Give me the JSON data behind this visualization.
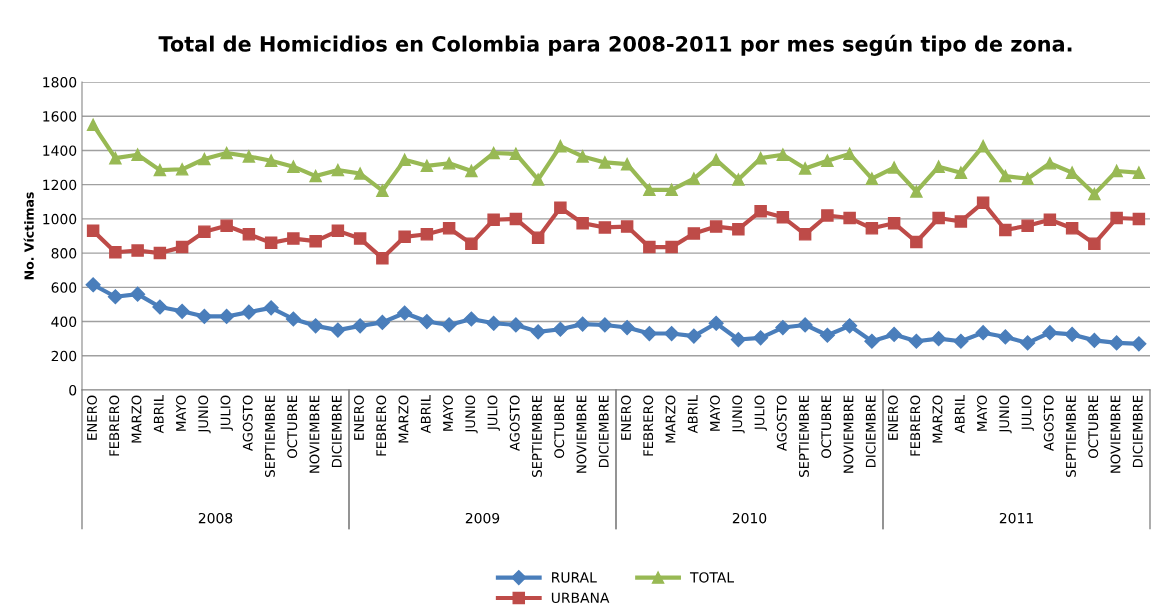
{
  "chart_data": {
    "type": "line",
    "title": "Total de Homicidios en Colombia para 2008-2011 por mes según tipo de zona.",
    "ylabel": "No. Víctimas",
    "categories": [
      "ENERO",
      "FEBRERO",
      "MARZO",
      "ABRIL",
      "MAYO",
      "JUNIO",
      "JULIO",
      "AGOSTO",
      "SEPTIEMBRE",
      "OCTUBRE",
      "NOVIEMBRE",
      "DICIEMBRE",
      "ENERO",
      "FEBRERO",
      "MARZO",
      "ABRIL",
      "MAYO",
      "JUNIO",
      "JULIO",
      "AGOSTO",
      "SEPTIEMBRE",
      "OCTUBRE",
      "NOVIEMBRE",
      "DICIEMBRE",
      "ENERO",
      "FEBRERO",
      "MARZO",
      "ABRIL",
      "MAYO",
      "JUNIO",
      "JULIO",
      "AGOSTO",
      "SEPTIEMBRE",
      "OCTUBRE",
      "NOVIEMBRE",
      "DICIEMBRE",
      "ENERO",
      "FEBRERO",
      "MARZO",
      "ABRIL",
      "MAYO",
      "JUNIO",
      "JULIO",
      "AGOSTO",
      "SEPTIEMBRE",
      "OCTUBRE",
      "NOVIEMBRE",
      "DICIEMBRE"
    ],
    "annotations": [
      "2008",
      "2009",
      "2010",
      "2011"
    ],
    "series": [
      {
        "name": "RURAL",
        "color": "#4a7ebb",
        "marker": "diamond",
        "values": [
          615,
          545,
          560,
          485,
          460,
          430,
          430,
          455,
          480,
          415,
          375,
          350,
          375,
          395,
          450,
          400,
          380,
          415,
          390,
          380,
          340,
          355,
          385,
          380,
          365,
          330,
          330,
          315,
          390,
          295,
          305,
          365,
          380,
          320,
          375,
          285,
          325,
          285,
          300,
          285,
          335,
          310,
          275,
          335,
          325,
          290,
          275,
          270
        ]
      },
      {
        "name": "URBANA",
        "color": "#be4b48",
        "marker": "square",
        "values": [
          930,
          805,
          815,
          800,
          835,
          925,
          960,
          910,
          860,
          885,
          870,
          930,
          885,
          770,
          895,
          910,
          945,
          855,
          995,
          1000,
          890,
          1065,
          975,
          950,
          955,
          835,
          835,
          915,
          955,
          940,
          1045,
          1010,
          910,
          1020,
          1005,
          945,
          975,
          865,
          1005,
          985,
          1095,
          935,
          960,
          995,
          945,
          855,
          1005,
          1000
        ]
      },
      {
        "name": "TOTAL",
        "color": "#98b954",
        "marker": "triangle",
        "values": [
          1550,
          1355,
          1375,
          1285,
          1290,
          1350,
          1385,
          1365,
          1340,
          1305,
          1250,
          1285,
          1265,
          1165,
          1345,
          1310,
          1325,
          1280,
          1385,
          1380,
          1230,
          1425,
          1365,
          1330,
          1320,
          1170,
          1170,
          1235,
          1345,
          1230,
          1355,
          1375,
          1295,
          1340,
          1380,
          1235,
          1300,
          1160,
          1305,
          1270,
          1425,
          1250,
          1235,
          1325,
          1270,
          1145,
          1280,
          1270
        ]
      }
    ],
    "ylim": [
      0,
      1800
    ],
    "yticks": [
      0,
      200,
      400,
      600,
      800,
      1000,
      1200,
      1400,
      1600,
      1800
    ],
    "grid": "y",
    "legend": "bottom"
  }
}
